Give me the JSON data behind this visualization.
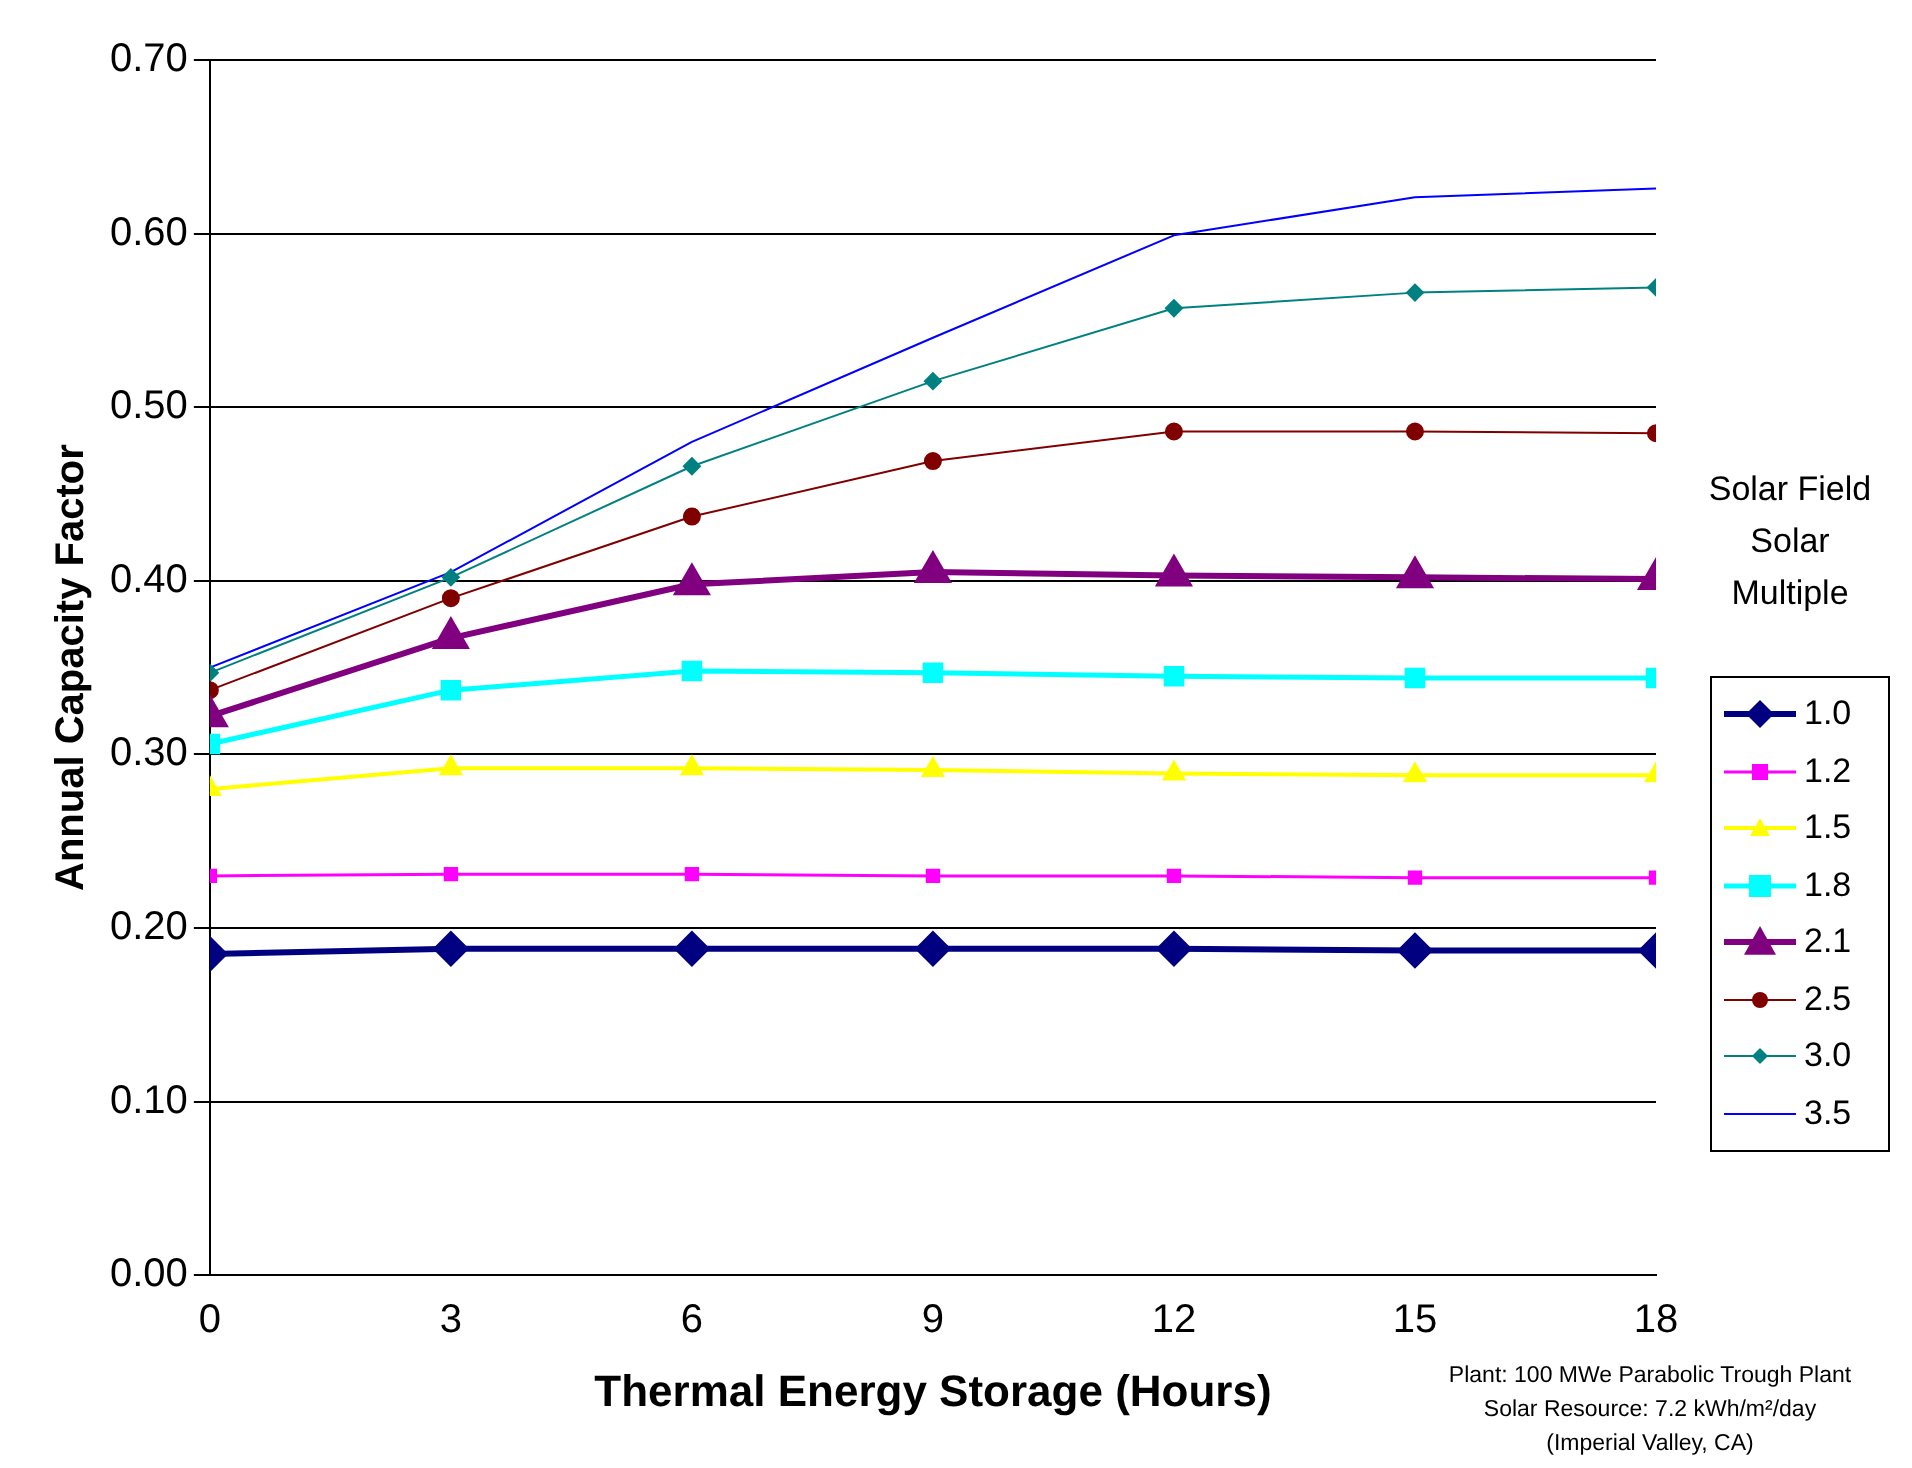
{
  "chart_data": {
    "type": "line",
    "xlabel": "Thermal Energy Storage (Hours)",
    "ylabel": "Annual Capacity Factor",
    "legend_title": "Solar Field Solar Multiple",
    "legend": "right",
    "x": [
      0,
      3,
      6,
      9,
      12,
      15,
      18
    ],
    "xlim": [
      0,
      18
    ],
    "xticks": [
      0,
      3,
      6,
      9,
      12,
      15,
      18
    ],
    "ylim": [
      0,
      0.7
    ],
    "yticks": [
      {
        "value": 0,
        "label": "0.00"
      },
      {
        "value": 0.1,
        "label": "0.10"
      },
      {
        "value": 0.2,
        "label": "0.20"
      },
      {
        "value": 0.3,
        "label": "0.30"
      },
      {
        "value": 0.4,
        "label": "0.40"
      },
      {
        "value": 0.5,
        "label": "0.50"
      },
      {
        "value": 0.6,
        "label": "0.60"
      },
      {
        "value": 0.7,
        "label": "0.70"
      }
    ],
    "grid": "y",
    "series": [
      {
        "name": "1.0",
        "color": "#000080",
        "marker": "diamond",
        "values": [
          0.185,
          0.188,
          0.188,
          0.188,
          0.188,
          0.187,
          0.187
        ]
      },
      {
        "name": "1.2",
        "color": "#ff00ff",
        "marker": "square",
        "values": [
          0.23,
          0.231,
          0.231,
          0.23,
          0.23,
          0.229,
          0.229
        ]
      },
      {
        "name": "1.5",
        "color": "#ffff00",
        "marker": "triangle",
        "values": [
          0.28,
          0.292,
          0.292,
          0.291,
          0.289,
          0.288,
          0.288
        ]
      },
      {
        "name": "1.8",
        "color": "#00ffff",
        "marker": "square",
        "values": [
          0.306,
          0.337,
          0.348,
          0.347,
          0.345,
          0.344,
          0.344
        ]
      },
      {
        "name": "2.1",
        "color": "#800080",
        "marker": "triangle",
        "values": [
          0.322,
          0.367,
          0.398,
          0.405,
          0.403,
          0.402,
          0.401
        ]
      },
      {
        "name": "2.5",
        "color": "#800000",
        "marker": "circle",
        "values": [
          0.337,
          0.39,
          0.437,
          0.469,
          0.486,
          0.486,
          0.485
        ]
      },
      {
        "name": "3.0",
        "color": "#008080",
        "marker": "diamond",
        "values": [
          0.347,
          0.402,
          0.466,
          0.515,
          0.557,
          0.566,
          0.569
        ]
      },
      {
        "name": "3.5",
        "color": "#0000ff",
        "marker": "none",
        "values": [
          0.35,
          0.405,
          0.48,
          0.54,
          0.599,
          0.621,
          0.626
        ]
      }
    ],
    "annotations": [
      "Plant: 100 MWe Parabolic Trough Plant",
      "Solar Resource: 7.2 kWh/m²/day",
      "(Imperial Valley, CA)"
    ]
  }
}
